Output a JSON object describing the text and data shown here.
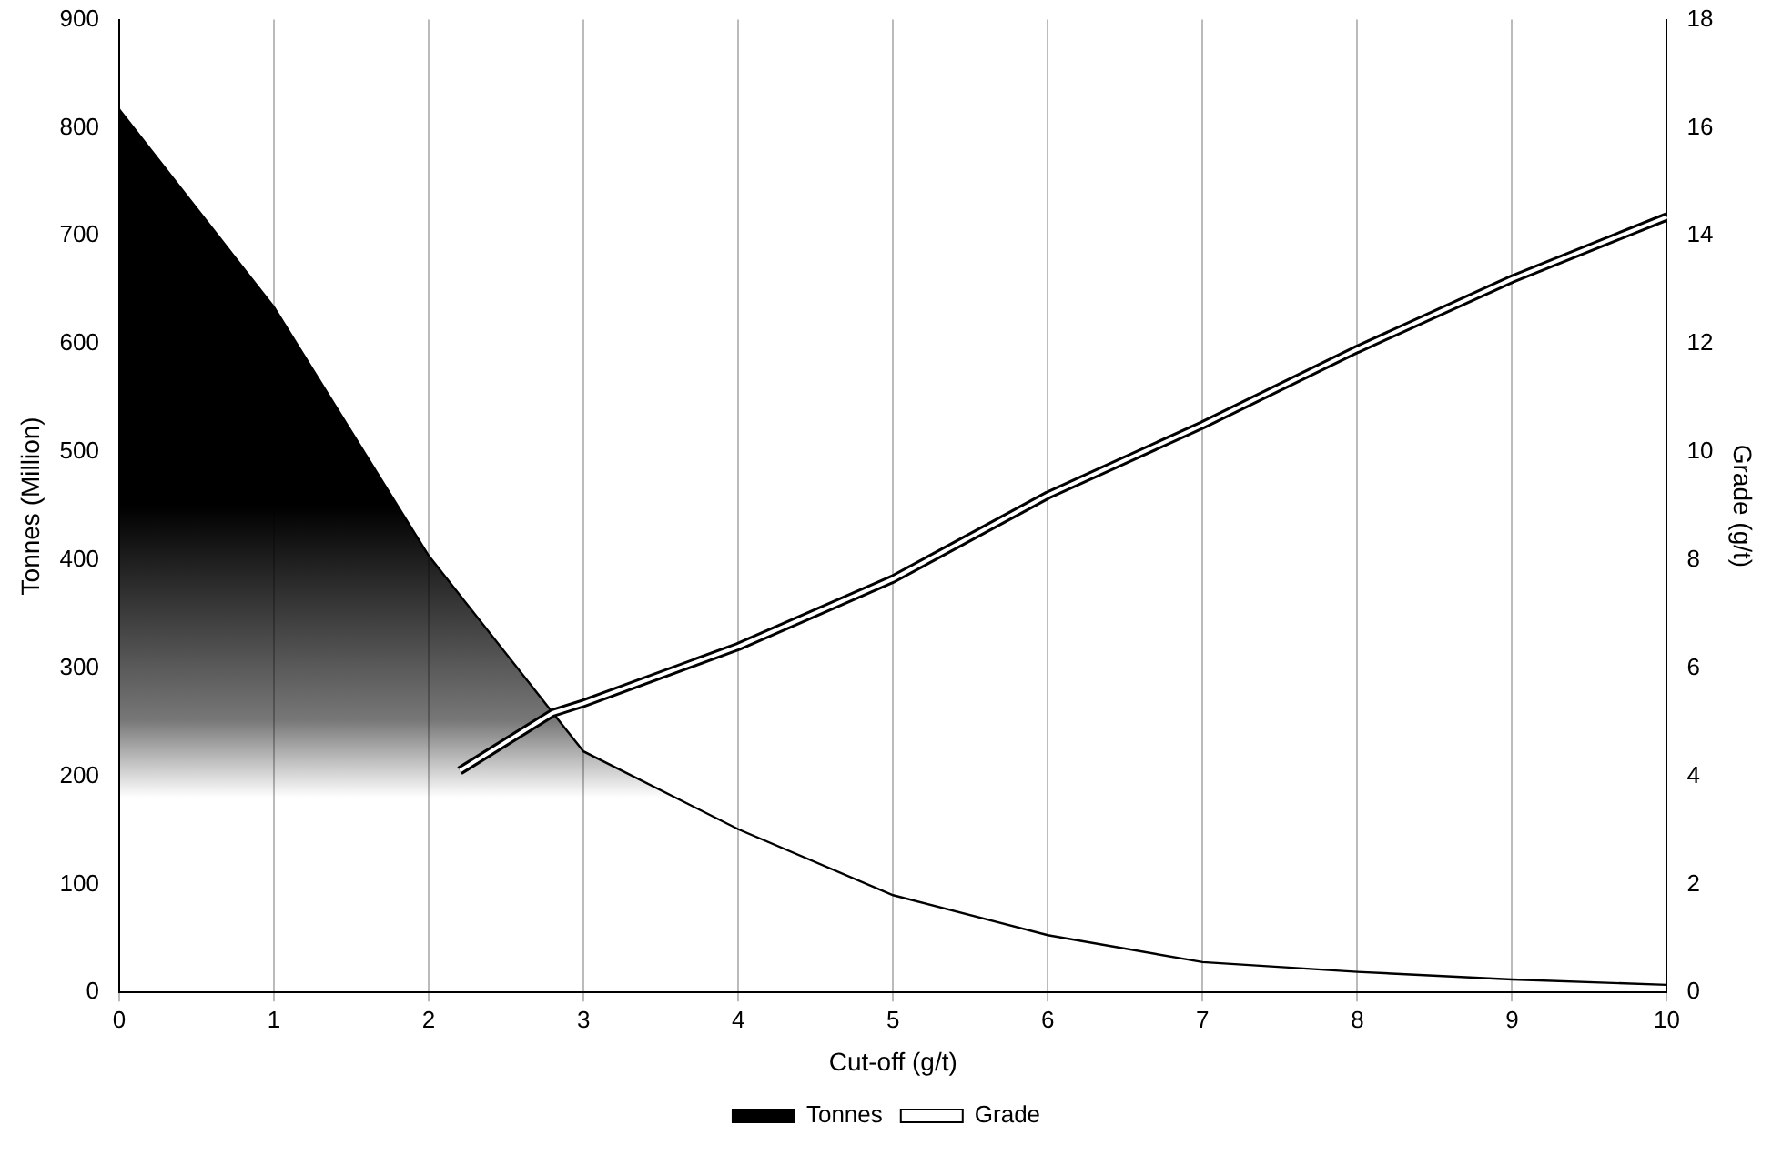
{
  "chart_data": {
    "type": "area",
    "xlabel": "Cut-off (g/t)",
    "ylabel": "Tonnes (Million)",
    "y2label": "Grade (g/t)",
    "xlim": [
      0,
      10
    ],
    "xticks": [
      0,
      1,
      2,
      3,
      4,
      5,
      6,
      7,
      8,
      9,
      10
    ],
    "ylim": [
      0,
      900
    ],
    "yticks": [
      0,
      100,
      200,
      300,
      400,
      500,
      600,
      700,
      800,
      900
    ],
    "y2lim": [
      0,
      18
    ],
    "y2ticks": [
      0,
      2,
      4,
      6,
      8,
      10,
      12,
      14,
      16,
      18
    ],
    "grid": "x",
    "legend": "bottom",
    "series": [
      {
        "name": "Tonnes",
        "color": "#000000",
        "x": [
          0,
          1,
          2,
          2.8,
          3,
          4,
          5,
          6,
          7,
          8,
          9,
          10
        ],
        "values": [
          817,
          634,
          404,
          259,
          223,
          151,
          90,
          53,
          28,
          19,
          12,
          7
        ]
      },
      {
        "name": "Grade",
        "type": "line",
        "axis": "y2",
        "color": "#000000",
        "x": [
          2.2,
          2.8,
          3,
          4,
          5,
          6,
          7,
          8,
          9,
          10
        ],
        "values": [
          4.1,
          5.17,
          5.35,
          6.4,
          7.65,
          9.2,
          10.5,
          11.9,
          13.2,
          14.35
        ]
      }
    ]
  }
}
